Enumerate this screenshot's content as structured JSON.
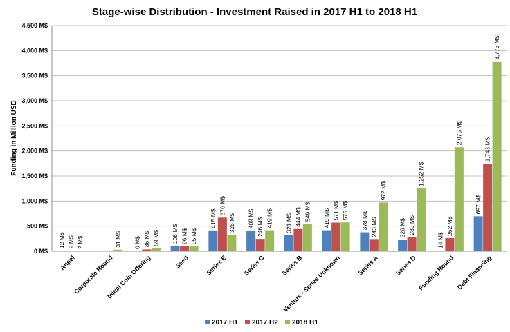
{
  "chart_data": {
    "type": "bar",
    "title": "Stage-wise Distribution -  Investment Raised in 2017 H1 to 2018 H1",
    "xlabel": "",
    "ylabel": "Funding in Million  USD",
    "ylim": [
      0,
      4500
    ],
    "ytick_step": 500,
    "yticks": [
      "0 M$",
      "500 M$",
      "1,000 M$",
      "1,500 M$",
      "2,000 M$",
      "2,500 M$",
      "3,000 M$",
      "3,500 M$",
      "4,000 M$",
      "4,500 M$"
    ],
    "grid": true,
    "legend_position": "bottom",
    "categories": [
      "Angel",
      "Corporate Round",
      "Initial Coin Offering",
      "Seed",
      "Series E",
      "Series C",
      "Series B",
      "Venture - Series Unknown",
      "Series A",
      "Series D",
      "Funding Round",
      "Debt Financing"
    ],
    "series": [
      {
        "name": "2017 H1",
        "color": "#4f81bd",
        "values": [
          12,
          null,
          0,
          108,
          415,
          409,
          321,
          419,
          378,
          229,
          14,
          697
        ],
        "labels": [
          "12 M$",
          "",
          "0 M$",
          "108 M$",
          "415 M$",
          "409 M$",
          "321 M$",
          "419 M$",
          "378 M$",
          "229 M$",
          "14 M$",
          "697 M$"
        ]
      },
      {
        "name": "2017 H2",
        "color": "#c0504d",
        "values": [
          9,
          null,
          36,
          96,
          670,
          246,
          444,
          571,
          243,
          280,
          262,
          1743
        ],
        "labels": [
          "9 M$",
          "",
          "36 M$",
          "96 M$",
          "670 M$",
          "246 M$",
          "444 M$",
          "571 M$",
          "243 M$",
          "280 M$",
          "262 M$",
          "1,743 M$"
        ]
      },
      {
        "name": "2018 H1",
        "color": "#9bbb59",
        "values": [
          2,
          31,
          59,
          95,
          325,
          419,
          549,
          575,
          972,
          1252,
          2075,
          3773
        ],
        "labels": [
          "2 M$",
          "31 M$",
          "59 M$",
          "95 M$",
          "325 M$",
          "419 M$",
          "549 M$",
          "575 M$",
          "972 M$",
          "1,252 M$",
          "2,075 M$",
          "3,773 M$"
        ]
      }
    ]
  }
}
